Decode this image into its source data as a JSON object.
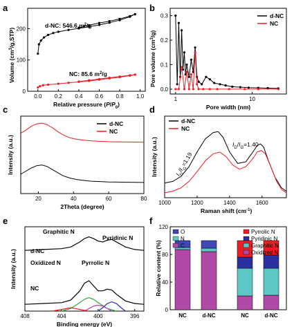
{
  "colors": {
    "black": "#000000",
    "red": "#ee1c24",
    "green": "#2ea83a",
    "blue": "#2b2fa0",
    "purple": "#b03cb0",
    "o_bar": "#3f48b6",
    "n_bar": "#5cc7c4",
    "c_bar": "#b04aa6",
    "pyrrolic_bar": "#ee1c24",
    "pyridinic_bar": "#2b2fa0",
    "graphitic_bar": "#5cc7c4",
    "oxidized_bar": "#b04aa6"
  },
  "panel_labels": {
    "a": "a",
    "b": "b",
    "c": "c",
    "d": "d",
    "e": "e",
    "f": "f"
  },
  "chart_data": [
    {
      "panel": "a",
      "type": "line",
      "xlabel": "Relative pressure (P/P0)",
      "ylabel": "Volume (cm3/g,STP)",
      "xlim": [
        -0.1,
        1.05
      ],
      "ylim": [
        0,
        265
      ],
      "xticks": [
        "0.0",
        "0.2",
        "0.4",
        "0.6",
        "0.8",
        "1.0"
      ],
      "yticks": [
        "0",
        "100",
        "200"
      ],
      "annotations": [
        "d-NC: 546.6 m2/g",
        "NC: 85.6 m2/g"
      ],
      "series": [
        {
          "name": "d-NC adsorption",
          "color": "black",
          "x": [
            0.0,
            0.01,
            0.03,
            0.06,
            0.1,
            0.15,
            0.2,
            0.3,
            0.4,
            0.5,
            0.6,
            0.7,
            0.8,
            0.9,
            0.95
          ],
          "y": [
            120,
            150,
            162,
            172,
            180,
            186,
            190,
            196,
            201,
            206,
            212,
            219,
            227,
            238,
            246
          ]
        },
        {
          "name": "d-NC desorption",
          "color": "black",
          "x": [
            0.95,
            0.9,
            0.8,
            0.7,
            0.6,
            0.5,
            0.45,
            0.4
          ],
          "y": [
            246,
            240,
            231,
            224,
            218,
            211,
            207,
            203
          ]
        },
        {
          "name": "NC adsorption",
          "color": "red",
          "x": [
            0.0,
            0.02,
            0.05,
            0.1,
            0.2,
            0.3,
            0.4,
            0.5,
            0.6,
            0.7,
            0.8,
            0.9,
            0.95
          ],
          "y": [
            12,
            16,
            19,
            21,
            24,
            27,
            30,
            33,
            37,
            41,
            45,
            50,
            53
          ]
        },
        {
          "name": "NC desorption",
          "color": "red",
          "x": [
            0.95,
            0.9,
            0.8,
            0.7,
            0.6,
            0.5,
            0.4
          ],
          "y": [
            53,
            51,
            47,
            43,
            39,
            35,
            31
          ]
        }
      ]
    },
    {
      "panel": "b",
      "type": "line",
      "xscale": "log",
      "xlabel": "Pore width (nm)",
      "ylabel": "Pore volume (cm3/g)",
      "xlim": [
        0.85,
        28
      ],
      "ylim": [
        -0.02,
        0.33
      ],
      "xticks": [
        "1",
        "10"
      ],
      "yticks": [
        "0.0",
        "0.1",
        "0.2",
        "0.3"
      ],
      "legend": [
        "d-NC",
        "NC"
      ],
      "legend_position": "top-right",
      "series": [
        {
          "name": "d-NC",
          "color": "black",
          "x": [
            1.0,
            1.05,
            1.1,
            1.15,
            1.2,
            1.25,
            1.3,
            1.35,
            1.4,
            1.5,
            1.6,
            1.7,
            1.8,
            1.9,
            2.0,
            2.2,
            2.5,
            2.8,
            3.2,
            3.8,
            4.5,
            5.5,
            7,
            9,
            12,
            16,
            22
          ],
          "y": [
            0.3,
            0.02,
            0.27,
            0.05,
            0.24,
            0.08,
            0.15,
            0.06,
            0.1,
            0.05,
            0.12,
            0.07,
            0.17,
            0.05,
            0.03,
            0.02,
            0.05,
            0.04,
            0.025,
            0.02,
            0.015,
            0.01,
            0.008,
            0.006,
            0.005,
            0.004,
            0.003
          ]
        },
        {
          "name": "NC",
          "color": "red",
          "x": [
            1.0,
            1.1,
            1.2,
            1.3,
            1.4,
            1.5,
            1.6,
            1.7,
            1.8,
            1.9,
            2.0,
            2.3,
            2.8,
            3.5,
            5,
            8,
            12,
            22
          ],
          "y": [
            0.0,
            0.0,
            0.09,
            0.0,
            0.07,
            0.0,
            0.06,
            0.0,
            0.15,
            0.02,
            0.0,
            0.0,
            0.0,
            0.0,
            0.0,
            0.0,
            0.0,
            0.0
          ]
        }
      ]
    },
    {
      "panel": "c",
      "type": "line",
      "xlabel": "2Theta (degree)",
      "ylabel": "Intensity (a.u.)",
      "xlim": [
        10,
        80
      ],
      "ylim": [
        0,
        1
      ],
      "xticks": [
        "20",
        "40",
        "60",
        "80"
      ],
      "legend": [
        "d-NC",
        "NC"
      ],
      "legend_position": "top-right",
      "series": [
        {
          "name": "d-NC",
          "color": "black",
          "x": [
            10,
            13,
            16,
            19,
            22,
            25,
            28,
            31,
            34,
            38,
            42,
            46,
            50,
            55,
            60,
            65,
            70,
            75,
            80
          ],
          "y": [
            0.25,
            0.29,
            0.33,
            0.36,
            0.37,
            0.35,
            0.31,
            0.27,
            0.23,
            0.2,
            0.18,
            0.17,
            0.16,
            0.155,
            0.15,
            0.148,
            0.146,
            0.145,
            0.144
          ]
        },
        {
          "name": "NC",
          "color": "red",
          "x": [
            10,
            13,
            16,
            19,
            22,
            25,
            28,
            31,
            34,
            38,
            42,
            46,
            50,
            55,
            60,
            65,
            70,
            75,
            80
          ],
          "y": [
            0.78,
            0.82,
            0.87,
            0.9,
            0.91,
            0.89,
            0.85,
            0.8,
            0.76,
            0.72,
            0.7,
            0.69,
            0.68,
            0.675,
            0.67,
            0.668,
            0.666,
            0.665,
            0.664
          ]
        }
      ]
    },
    {
      "panel": "d",
      "type": "line",
      "xlabel": "Raman shift (cm-1)",
      "ylabel": "Intensity (a.u.)",
      "xlim": [
        1000,
        1750
      ],
      "ylim": [
        0,
        1
      ],
      "xticks": [
        "1000",
        "1200",
        "1400",
        "1600"
      ],
      "legend": [
        "d-NC",
        "NC"
      ],
      "legend_position": "top-left",
      "annotations": [
        "ID/IG=1.40",
        "ID/IG=1.19"
      ],
      "series": [
        {
          "name": "d-NC",
          "color": "black",
          "x": [
            1000,
            1050,
            1100,
            1150,
            1200,
            1250,
            1300,
            1330,
            1360,
            1400,
            1450,
            1500,
            1540,
            1570,
            1590,
            1610,
            1640,
            1680,
            1720,
            1750
          ],
          "y": [
            0.18,
            0.2,
            0.26,
            0.38,
            0.56,
            0.72,
            0.8,
            0.81,
            0.74,
            0.56,
            0.42,
            0.44,
            0.55,
            0.64,
            0.66,
            0.62,
            0.45,
            0.25,
            0.12,
            0.08
          ]
        },
        {
          "name": "NC",
          "color": "red",
          "x": [
            1000,
            1050,
            1100,
            1150,
            1200,
            1250,
            1300,
            1340,
            1380,
            1420,
            1460,
            1500,
            1540,
            1570,
            1595,
            1620,
            1650,
            1690,
            1720,
            1750
          ],
          "y": [
            0.06,
            0.08,
            0.12,
            0.2,
            0.32,
            0.45,
            0.54,
            0.56,
            0.5,
            0.4,
            0.35,
            0.38,
            0.47,
            0.56,
            0.58,
            0.54,
            0.4,
            0.2,
            0.1,
            0.06
          ]
        }
      ]
    },
    {
      "panel": "e",
      "type": "line",
      "xlabel": "Binding energy (eV)",
      "ylabel": "Intensity (a.u.)",
      "xlim": [
        408,
        395
      ],
      "ylim": [
        0,
        1
      ],
      "xticks": [
        "408",
        "404",
        "400",
        "396"
      ],
      "annotations": [
        "Graphitic N",
        "Pyridinic N",
        "Oxidized N",
        "Pyrrolic N",
        "d-NC",
        "NC"
      ],
      "series": [
        {
          "name": "d-NC fit",
          "color": "black",
          "x": [
            408,
            406,
            404,
            403,
            402,
            401.5,
            401,
            400.5,
            400,
            399.5,
            399,
            398.5,
            398,
            397,
            396,
            395
          ],
          "y": [
            0.72,
            0.73,
            0.74,
            0.76,
            0.82,
            0.86,
            0.88,
            0.86,
            0.83,
            0.82,
            0.84,
            0.85,
            0.82,
            0.76,
            0.73,
            0.72
          ]
        },
        {
          "name": "NC fit",
          "color": "black",
          "x": [
            408,
            406,
            404,
            403,
            402,
            401.5,
            401,
            400.5,
            400,
            399.5,
            399,
            398.5,
            398,
            397,
            396,
            395
          ],
          "y": [
            0.08,
            0.09,
            0.1,
            0.13,
            0.24,
            0.33,
            0.36,
            0.3,
            0.24,
            0.24,
            0.26,
            0.25,
            0.2,
            0.12,
            0.09,
            0.08
          ]
        },
        {
          "name": "Graphitic N",
          "color": "green",
          "x": [
            404,
            403,
            402,
            401.5,
            401,
            400.5,
            400,
            399,
            398
          ],
          "y": [
            0,
            0.03,
            0.1,
            0.14,
            0.16,
            0.14,
            0.1,
            0.03,
            0
          ]
        },
        {
          "name": "Pyridinic N",
          "color": "blue",
          "x": [
            400,
            399.5,
            399,
            398.5,
            398,
            397.5,
            397
          ],
          "y": [
            0,
            0.04,
            0.09,
            0.11,
            0.09,
            0.04,
            0
          ]
        },
        {
          "name": "Pyrrolic N",
          "color": "purple",
          "x": [
            401.5,
            401,
            400.5,
            400,
            399.5,
            399,
            398.5
          ],
          "y": [
            0,
            0.03,
            0.06,
            0.07,
            0.06,
            0.03,
            0
          ]
        },
        {
          "name": "Oxidized N",
          "color": "red",
          "x": [
            405,
            404,
            403,
            402.5,
            402,
            401
          ],
          "y": [
            0,
            0.02,
            0.04,
            0.03,
            0.02,
            0
          ]
        }
      ]
    },
    {
      "panel": "f",
      "type": "bar",
      "stacked": true,
      "ylabel": "Relative content (%)",
      "ylim": [
        0,
        120
      ],
      "yticks": [
        "0",
        "40",
        "80",
        "120"
      ],
      "categories": [
        "NC",
        "d-NC",
        "NC",
        "d-NC"
      ],
      "groups": [
        {
          "legend": [
            "O",
            "N",
            "C"
          ],
          "legend_position": "top-left"
        },
        {
          "legend": [
            "Pyrrolic N",
            "Pyridinic N",
            "Graphitic N",
            "Oxidized N"
          ],
          "legend_position": "top-right"
        }
      ],
      "series": [
        {
          "name": "C",
          "color": "c_bar",
          "values": [
            87,
            84,
            null,
            null
          ]
        },
        {
          "name": "N",
          "color": "n_bar",
          "values": [
            3,
            5,
            null,
            null
          ]
        },
        {
          "name": "O",
          "color": "o_bar",
          "values": [
            10,
            11,
            null,
            null
          ]
        },
        {
          "name": "Oxidized N",
          "color": "oxidized_bar",
          "values": [
            null,
            null,
            20,
            21
          ]
        },
        {
          "name": "Graphitic N",
          "color": "graphitic_bar",
          "values": [
            null,
            null,
            40,
            39
          ]
        },
        {
          "name": "Pyridinic N",
          "color": "pyridinic_bar",
          "values": [
            null,
            null,
            16,
            19
          ]
        },
        {
          "name": "Pyrrolic N",
          "color": "pyrrolic_bar",
          "values": [
            null,
            null,
            24,
            21
          ]
        }
      ]
    }
  ]
}
